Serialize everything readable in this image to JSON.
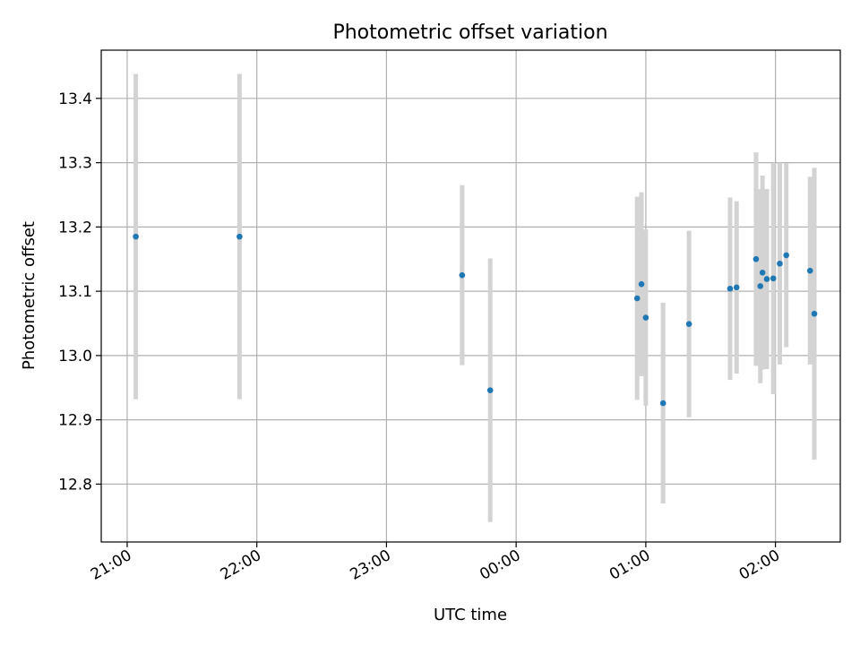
{
  "chart_data": {
    "type": "scatter",
    "title": "Photometric offset variation",
    "xlabel": "UTC time",
    "ylabel": "Photometric offset",
    "x_unit": "UTC time (hh:mm)",
    "x_ticks": [
      "21:00",
      "22:00",
      "23:00",
      "00:00",
      "01:00",
      "02:00"
    ],
    "y_ticks": [
      "12.8",
      "12.9",
      "13.0",
      "13.1",
      "13.2",
      "13.3",
      "13.4"
    ],
    "xlim": [
      "20:48",
      "02:30"
    ],
    "ylim": [
      12.71,
      13.475
    ],
    "grid": true,
    "legend": "none",
    "marker_color": "#1f77b4",
    "errorbar_color": "#d3d3d3",
    "points": [
      {
        "x": "21:04",
        "y": 13.185,
        "err": 0.253
      },
      {
        "x": "21:52",
        "y": 13.185,
        "err": 0.253
      },
      {
        "x": "23:35",
        "y": 13.125,
        "err": 0.14
      },
      {
        "x": "23:48",
        "y": 12.946,
        "err": 0.205
      },
      {
        "x": "00:56",
        "y": 13.089,
        "err": 0.158
      },
      {
        "x": "00:58",
        "y": 13.111,
        "err": 0.143
      },
      {
        "x": "01:00",
        "y": 13.059,
        "err": 0.137
      },
      {
        "x": "01:08",
        "y": 12.926,
        "err": 0.156
      },
      {
        "x": "01:20",
        "y": 13.049,
        "err": 0.145
      },
      {
        "x": "01:39",
        "y": 13.104,
        "err": 0.142
      },
      {
        "x": "01:42",
        "y": 13.106,
        "err": 0.134
      },
      {
        "x": "01:51",
        "y": 13.15,
        "err": 0.166
      },
      {
        "x": "01:53",
        "y": 13.108,
        "err": 0.151
      },
      {
        "x": "01:54",
        "y": 13.129,
        "err": 0.151
      },
      {
        "x": "01:56",
        "y": 13.119,
        "err": 0.14
      },
      {
        "x": "01:59",
        "y": 13.12,
        "err": 0.18
      },
      {
        "x": "02:02",
        "y": 13.143,
        "err": 0.157
      },
      {
        "x": "02:05",
        "y": 13.156,
        "err": 0.143
      },
      {
        "x": "02:16",
        "y": 13.132,
        "err": 0.146
      },
      {
        "x": "02:18",
        "y": 13.065,
        "err": 0.227
      }
    ]
  }
}
